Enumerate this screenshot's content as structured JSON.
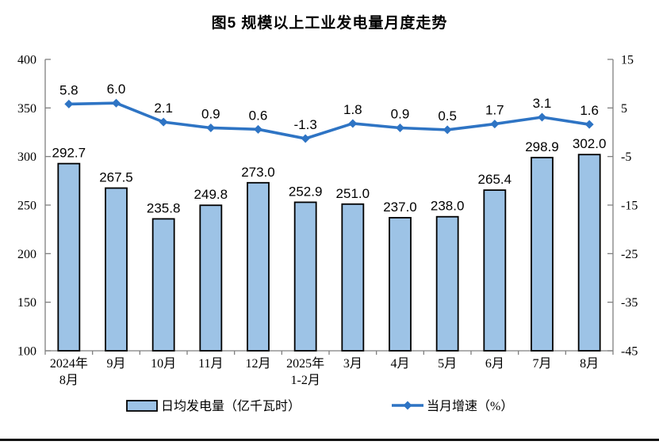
{
  "page": {
    "background": "#ffffff",
    "rule_color": "#111111"
  },
  "chart_data": {
    "type": "combo-bar-line",
    "title": "图5 规模以上工业发电量月度走势",
    "categories": [
      [
        "2024年",
        "8月"
      ],
      [
        "9月"
      ],
      [
        "10月"
      ],
      [
        "11月"
      ],
      [
        "12月"
      ],
      [
        "2025年",
        "1-2月"
      ],
      [
        "3月"
      ],
      [
        "4月"
      ],
      [
        "5月"
      ],
      [
        "6月"
      ],
      [
        "7月"
      ],
      [
        "8月"
      ]
    ],
    "series": [
      {
        "name": "日均发电量（亿千瓦时）",
        "type": "bar",
        "axis": "left",
        "values": [
          292.7,
          267.5,
          235.8,
          249.8,
          273.0,
          252.9,
          251.0,
          237.0,
          238.0,
          265.4,
          298.9,
          302.0
        ],
        "labels": [
          "292.7",
          "267.5",
          "235.8",
          "249.8",
          "273.0",
          "252.9",
          "251.0",
          "237.0",
          "238.0",
          "265.4",
          "298.9",
          "302.0"
        ],
        "fill": "#9DC3E6",
        "stroke": "#000000"
      },
      {
        "name": "当月增速（%）",
        "type": "line",
        "axis": "right",
        "values": [
          5.8,
          6.0,
          2.1,
          0.9,
          0.6,
          -1.3,
          1.8,
          0.9,
          0.5,
          1.7,
          3.1,
          1.6
        ],
        "labels": [
          "5.8",
          "6.0",
          "2.1",
          "0.9",
          "0.6",
          "-1.3",
          "1.8",
          "0.9",
          "0.5",
          "1.7",
          "3.1",
          "1.6"
        ],
        "color": "#2E74C4",
        "marker": "diamond"
      }
    ],
    "left_axis": {
      "max": 400,
      "min": 100,
      "step": 50,
      "ticks": [
        "400",
        "350",
        "300",
        "250",
        "200",
        "150",
        "100"
      ]
    },
    "right_axis": {
      "max": 15,
      "min": -45,
      "step": 10,
      "ticks": [
        "15",
        "5",
        "-5",
        "-15",
        "-25",
        "-35",
        "-45"
      ]
    },
    "axis_color": "#7f7f7f",
    "grid": false,
    "legend_position": "bottom"
  }
}
